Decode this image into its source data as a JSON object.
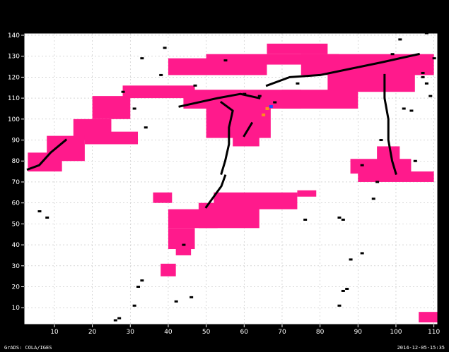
{
  "chart_data": {
    "type": "heatmap",
    "title": "",
    "xlabel": "",
    "ylabel": "",
    "xlim": [
      2,
      111
    ],
    "ylim": [
      2,
      141
    ],
    "x_ticks": [
      10,
      20,
      30,
      40,
      50,
      60,
      70,
      80,
      90,
      100,
      110
    ],
    "y_ticks": [
      10,
      20,
      30,
      40,
      50,
      60,
      70,
      80,
      90,
      100,
      110,
      120,
      130,
      140
    ],
    "grid": true,
    "colors": {
      "background": "#000000",
      "plot_area": "#ffffff",
      "primary_category": "#ff1a8c",
      "secondary_category": "#000000",
      "sparse_marker_a": "#ff8c1a",
      "sparse_marker_b": "#1a4cff",
      "grid": "#bfbfbf"
    },
    "pink_region_blocks": [
      {
        "x": [
          40,
          66
        ],
        "y": [
          121,
          129
        ]
      },
      {
        "x": [
          50,
          85
        ],
        "y": [
          126,
          131
        ]
      },
      {
        "x": [
          66,
          82
        ],
        "y": [
          131,
          136
        ]
      },
      {
        "x": [
          75,
          110
        ],
        "y": [
          121,
          131
        ]
      },
      {
        "x": [
          82,
          105
        ],
        "y": [
          113,
          124
        ]
      },
      {
        "x": [
          70,
          90
        ],
        "y": [
          105,
          114
        ]
      },
      {
        "x": [
          44,
          75
        ],
        "y": [
          105,
          114
        ]
      },
      {
        "x": [
          50,
          67
        ],
        "y": [
          91,
          106
        ]
      },
      {
        "x": [
          57,
          64
        ],
        "y": [
          87,
          92
        ]
      },
      {
        "x": [
          28,
          47
        ],
        "y": [
          110,
          116
        ]
      },
      {
        "x": [
          20,
          30
        ],
        "y": [
          100,
          111
        ]
      },
      {
        "x": [
          15,
          25
        ],
        "y": [
          90,
          100
        ]
      },
      {
        "x": [
          8,
          18
        ],
        "y": [
          80,
          92
        ]
      },
      {
        "x": [
          3,
          12
        ],
        "y": [
          75,
          84
        ]
      },
      {
        "x": [
          18,
          32
        ],
        "y": [
          88,
          94
        ]
      },
      {
        "x": [
          88,
          104
        ],
        "y": [
          74,
          81
        ]
      },
      {
        "x": [
          95,
          101
        ],
        "y": [
          80,
          87
        ]
      },
      {
        "x": [
          90,
          110
        ],
        "y": [
          70,
          75
        ]
      },
      {
        "x": [
          40,
          53
        ],
        "y": [
          48,
          57
        ]
      },
      {
        "x": [
          52,
          74
        ],
        "y": [
          57,
          65
        ]
      },
      {
        "x": [
          48,
          64
        ],
        "y": [
          48,
          60
        ]
      },
      {
        "x": [
          40,
          47
        ],
        "y": [
          38,
          48
        ]
      },
      {
        "x": [
          42,
          46
        ],
        "y": [
          35,
          40
        ]
      },
      {
        "x": [
          36,
          41
        ],
        "y": [
          60,
          65
        ]
      },
      {
        "x": [
          38,
          42
        ],
        "y": [
          25,
          31
        ]
      },
      {
        "x": [
          74,
          79
        ],
        "y": [
          63,
          66
        ]
      },
      {
        "x": [
          106,
          111
        ],
        "y": [
          3,
          8
        ]
      }
    ],
    "black_paths": [
      [
        [
          54,
          108
        ],
        [
          57,
          104
        ],
        [
          56,
          96
        ],
        [
          56,
          88
        ],
        [
          55,
          80
        ],
        [
          54,
          74
        ]
      ],
      [
        [
          66,
          116
        ],
        [
          72,
          120
        ],
        [
          80,
          121
        ],
        [
          88,
          124
        ],
        [
          96,
          127
        ],
        [
          106,
          131
        ]
      ],
      [
        [
          43,
          106
        ],
        [
          48,
          108
        ],
        [
          53,
          110
        ],
        [
          59,
          112
        ],
        [
          64,
          110
        ]
      ],
      [
        [
          62,
          98
        ],
        [
          60,
          92
        ]
      ],
      [
        [
          97,
          121
        ],
        [
          97,
          110
        ],
        [
          98,
          100
        ],
        [
          98,
          90
        ],
        [
          99,
          80
        ],
        [
          100,
          74
        ]
      ],
      [
        [
          3,
          76
        ],
        [
          6,
          78
        ],
        [
          9,
          84
        ],
        [
          13,
          90
        ]
      ],
      [
        [
          55,
          73
        ],
        [
          54,
          68
        ],
        [
          52,
          63
        ],
        [
          50,
          58
        ]
      ]
    ],
    "scattered_black_points": [
      [
        33,
        129
      ],
      [
        39,
        134
      ],
      [
        28,
        113
      ],
      [
        38,
        121
      ],
      [
        55,
        128
      ],
      [
        47,
        116
      ],
      [
        74,
        117
      ],
      [
        60,
        112
      ],
      [
        64,
        111
      ],
      [
        68,
        108
      ],
      [
        96,
        90
      ],
      [
        91,
        78
      ],
      [
        95,
        70
      ],
      [
        107,
        122
      ],
      [
        108,
        117
      ],
      [
        104,
        104
      ],
      [
        109,
        111
      ],
      [
        102,
        105
      ],
      [
        105,
        80
      ],
      [
        94,
        62
      ],
      [
        76,
        52
      ],
      [
        86,
        52
      ],
      [
        85,
        53
      ],
      [
        88,
        33
      ],
      [
        91,
        36
      ],
      [
        86,
        18
      ],
      [
        87,
        19
      ],
      [
        85,
        11
      ],
      [
        27,
        5
      ],
      [
        26,
        4
      ],
      [
        31,
        11
      ],
      [
        33,
        23
      ],
      [
        32,
        20
      ],
      [
        8,
        53
      ],
      [
        6,
        56
      ],
      [
        42,
        13
      ],
      [
        44,
        40
      ],
      [
        46,
        15
      ],
      [
        31,
        105
      ],
      [
        34,
        96
      ],
      [
        99,
        131
      ],
      [
        101,
        138
      ],
      [
        108,
        141
      ],
      [
        107,
        120
      ],
      [
        110,
        129
      ]
    ],
    "sparse_colored_points": [
      {
        "x": 66,
        "y": 105,
        "category": "sparse_marker_a"
      },
      {
        "x": 65,
        "y": 102,
        "category": "sparse_marker_a"
      },
      {
        "x": 67,
        "y": 106,
        "category": "sparse_marker_b"
      }
    ]
  },
  "footer": {
    "left": "GrADS: COLA/IGES",
    "right": "2014-12-05-15:35"
  }
}
